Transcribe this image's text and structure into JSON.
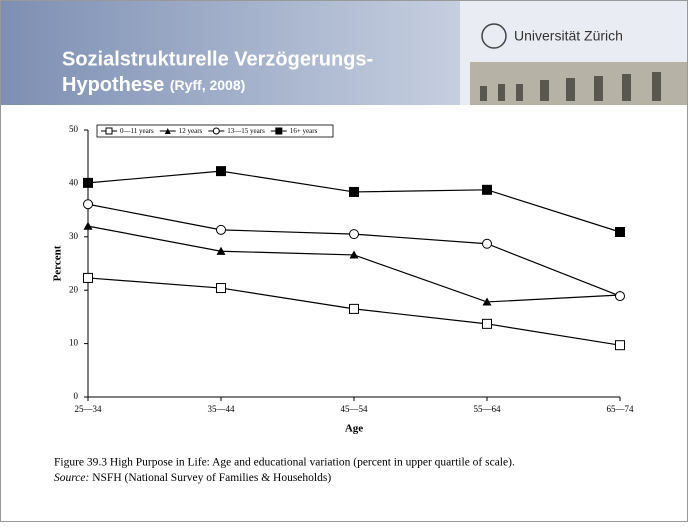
{
  "header": {
    "title_line1": "Sozialstrukturelle Verzögerungs-",
    "title_line2": "Hypothese",
    "citation": "(Ryff, 2008)",
    "logo_text": "Universität Zürich"
  },
  "chart_data": {
    "type": "line",
    "x_label": "Age",
    "y_label": "Percent",
    "categories": [
      "25—34",
      "35—44",
      "45—54",
      "55—64",
      "65—74"
    ],
    "series": [
      {
        "name": "0—11 years",
        "color": "#000000",
        "marker": "open-square",
        "values": [
          22.3,
          20.4,
          16.5,
          13.7,
          9.7
        ]
      },
      {
        "name": "12 years",
        "color": "#000000",
        "marker": "triangle",
        "values": [
          32.0,
          27.3,
          26.6,
          17.8,
          19.1
        ]
      },
      {
        "name": "13—15 years",
        "color": "#000000",
        "marker": "open-circle",
        "values": [
          36.1,
          31.3,
          30.5,
          28.7,
          18.9
        ]
      },
      {
        "name": "16+ years",
        "color": "#000000",
        "marker": "filled-square",
        "values": [
          40.1,
          42.3,
          38.4,
          38.8,
          30.9
        ]
      }
    ],
    "ylim": [
      0,
      50
    ],
    "yticks": [
      0,
      10,
      20,
      30,
      40,
      50
    ],
    "legend": "top"
  },
  "caption": {
    "line1": "Figure 39.3 High Purpose in Life: Age and educational variation (percent in upper quartile of scale).",
    "source_label": "Source:",
    "source_text": "NSFH (National Survey of Families & Households)"
  }
}
